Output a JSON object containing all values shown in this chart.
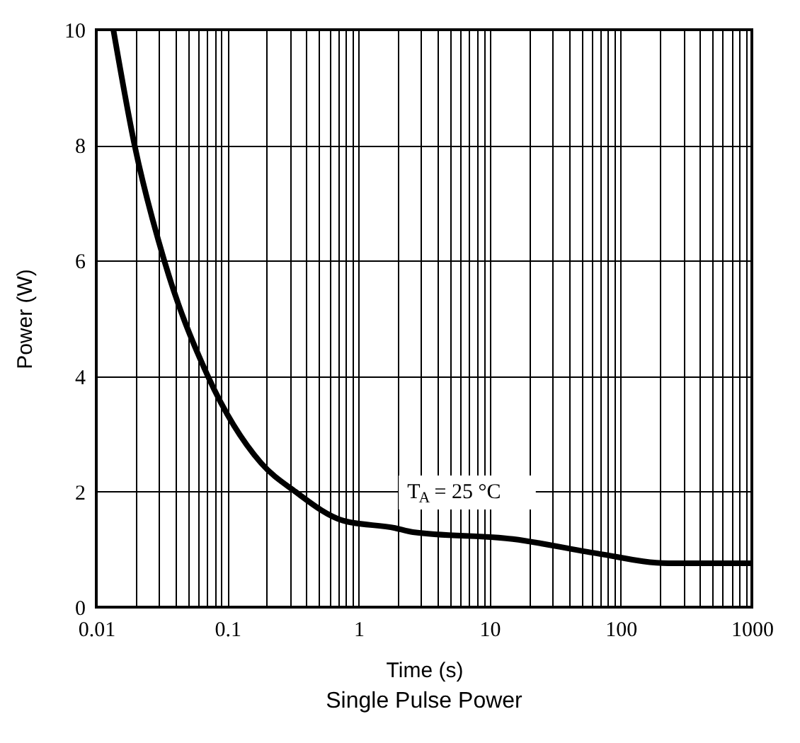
{
  "chart_data": {
    "type": "line",
    "title": "Single Pulse Power",
    "xlabel": "Time (s)",
    "ylabel": "Power (W)",
    "log": "x",
    "grid": true,
    "marker": "none",
    "line_style": "solid",
    "x": [
      0.0135,
      0.0196,
      0.033,
      0.071,
      0.18,
      0.33,
      0.76,
      1.9,
      2.6,
      15,
      66,
      230,
      1000
    ],
    "series": [
      {
        "color": "#000000",
        "values": [
          10,
          8,
          6,
          4,
          2.5,
          2,
          1.5,
          1.37,
          1.3,
          1.18,
          0.93,
          0.76,
          0.76
        ]
      }
    ],
    "xlim": [
      0.01,
      1000
    ],
    "ylim": [
      0,
      10
    ],
    "yticks": [
      0,
      2,
      4,
      6,
      8,
      10
    ],
    "xticks": [
      {
        "value": 0.01,
        "label": "0.01"
      },
      {
        "value": 0.02,
        "label": null
      },
      {
        "value": 0.03,
        "label": null
      },
      {
        "value": 0.04,
        "label": null
      },
      {
        "value": 0.05,
        "label": null
      },
      {
        "value": 0.06,
        "label": null
      },
      {
        "value": 0.07,
        "label": null
      },
      {
        "value": 0.08,
        "label": null
      },
      {
        "value": 0.09,
        "label": null
      },
      {
        "value": 0.1,
        "label": "0.1"
      },
      {
        "value": 0.2,
        "label": null
      },
      {
        "value": 0.3,
        "label": null
      },
      {
        "value": 0.4,
        "label": null
      },
      {
        "value": 0.5,
        "label": null
      },
      {
        "value": 0.6,
        "label": null
      },
      {
        "value": 0.7,
        "label": null
      },
      {
        "value": 0.8,
        "label": null
      },
      {
        "value": 0.9,
        "label": null
      },
      1,
      {
        "value": 2,
        "label": null
      },
      {
        "value": 3,
        "label": null
      },
      {
        "value": 4,
        "label": null
      },
      {
        "value": 5,
        "label": null
      },
      {
        "value": 6,
        "label": null
      },
      {
        "value": 7,
        "label": null
      },
      {
        "value": 8,
        "label": null
      },
      {
        "value": 9,
        "label": null
      },
      10,
      {
        "value": 20,
        "label": null
      },
      {
        "value": 30,
        "label": null
      },
      {
        "value": 40,
        "label": null
      },
      {
        "value": 50,
        "label": null
      },
      {
        "value": 60,
        "label": null
      },
      {
        "value": 70,
        "label": null
      },
      {
        "value": 80,
        "label": null
      },
      {
        "value": 90,
        "label": null
      },
      100,
      {
        "value": 200,
        "label": null
      },
      {
        "value": 300,
        "label": null
      },
      {
        "value": 400,
        "label": null
      },
      {
        "value": 500,
        "label": null
      },
      {
        "value": 600,
        "label": null
      },
      {
        "value": 700,
        "label": null
      },
      {
        "value": 800,
        "label": null
      },
      {
        "value": 900,
        "label": null
      },
      1000
    ],
    "annotations": [
      "T$_{A}$ = 25 °C"
    ]
  }
}
